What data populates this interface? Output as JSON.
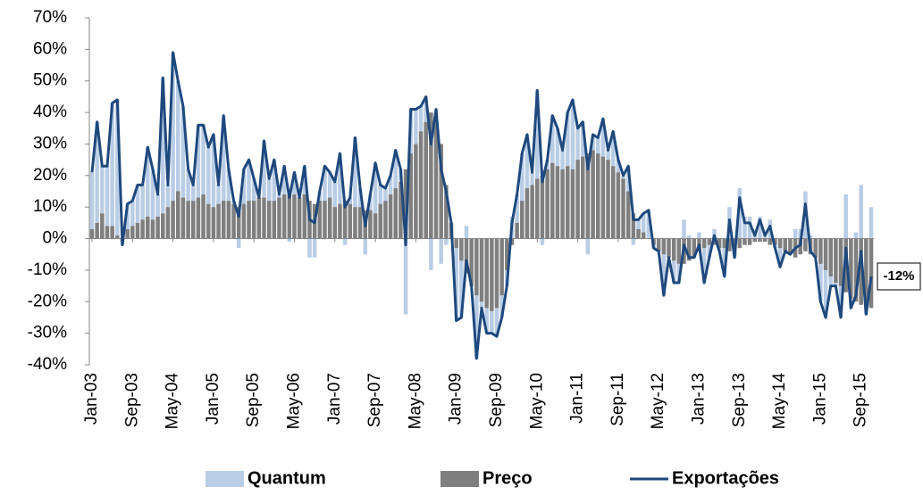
{
  "chart_data": {
    "type": "bar",
    "stacked": true,
    "categories": [
      "Jan-03",
      null,
      null,
      null,
      null,
      null,
      null,
      null,
      "Sep-03",
      null,
      null,
      null,
      null,
      null,
      null,
      null,
      "May-04",
      null,
      null,
      null,
      null,
      null,
      null,
      null,
      "Jan-05",
      null,
      null,
      null,
      null,
      null,
      null,
      null,
      "Sep-05",
      null,
      null,
      null,
      null,
      null,
      null,
      null,
      "May-06",
      null,
      null,
      null,
      null,
      null,
      null,
      null,
      "Jan-07",
      null,
      null,
      null,
      null,
      null,
      null,
      null,
      "Sep-07",
      null,
      null,
      null,
      null,
      null,
      null,
      null,
      "May-08",
      null,
      null,
      null,
      null,
      null,
      null,
      null,
      "Jan-09",
      null,
      null,
      null,
      null,
      null,
      null,
      null,
      "Sep-09",
      null,
      null,
      null,
      null,
      null,
      null,
      null,
      "May-10",
      null,
      null,
      null,
      null,
      null,
      null,
      null,
      "Jan-11",
      null,
      null,
      null,
      null,
      null,
      null,
      null,
      "Sep-11",
      null,
      null,
      null,
      null,
      null,
      null,
      null,
      "May-12",
      null,
      null,
      null,
      null,
      null,
      null,
      null,
      "Jan-13",
      null,
      null,
      null,
      null,
      null,
      null,
      null,
      "Sep-13",
      null,
      null,
      null,
      null,
      null,
      null,
      null,
      "May-14",
      null,
      null,
      null,
      null,
      null,
      null,
      null,
      "Jan-15",
      null,
      null,
      null,
      null,
      null,
      null,
      null,
      "Sep-15",
      null,
      null
    ],
    "series": [
      {
        "name": "Quantum",
        "color": "#b9cde5",
        "values": [
          18,
          32,
          15,
          19,
          39,
          43,
          -1,
          8,
          8,
          12,
          11,
          22,
          16,
          7,
          43,
          7,
          47,
          35,
          29,
          10,
          5,
          23,
          22,
          18,
          23,
          6,
          27,
          10,
          1,
          -3,
          11,
          13,
          7,
          0,
          18,
          7,
          13,
          1,
          9,
          -1,
          7,
          0,
          9,
          -6,
          -6,
          3,
          11,
          8,
          8,
          16,
          -2,
          2,
          22,
          6,
          -5,
          5,
          16,
          6,
          4,
          6,
          12,
          4,
          -24,
          14,
          11,
          8,
          8,
          -10,
          3,
          -8,
          -2,
          0,
          -23,
          -18,
          4,
          0,
          -20,
          -2,
          -8,
          -7,
          -9,
          -7,
          -5,
          7,
          9,
          15,
          17,
          4,
          28,
          -2,
          3,
          15,
          12,
          6,
          17,
          22,
          10,
          11,
          -5,
          5,
          5,
          12,
          3,
          11,
          4,
          1,
          8,
          -2,
          3,
          6,
          9,
          -1,
          0,
          -13,
          0,
          -7,
          -6,
          6,
          1,
          0,
          2,
          -11,
          -4,
          3,
          -1,
          -9,
          10,
          -1,
          16,
          7,
          7,
          2,
          7,
          2,
          6,
          -1,
          -6,
          0,
          0,
          3,
          3,
          15,
          1,
          0,
          -12,
          -15,
          -3,
          -1,
          -10,
          14,
          -3,
          2,
          17,
          -2,
          10
        ]
      },
      {
        "name": "Preço",
        "color": "#7f7f7f",
        "values": [
          3,
          5,
          8,
          4,
          4,
          1,
          -1,
          3,
          4,
          5,
          6,
          7,
          6,
          7,
          8,
          10,
          12,
          15,
          13,
          12,
          12,
          13,
          14,
          11,
          10,
          11,
          12,
          12,
          11,
          10,
          11,
          12,
          12,
          13,
          13,
          12,
          12,
          13,
          14,
          14,
          14,
          13,
          14,
          12,
          11,
          12,
          12,
          13,
          10,
          11,
          12,
          11,
          10,
          10,
          9,
          9,
          8,
          11,
          12,
          14,
          16,
          18,
          22,
          27,
          30,
          34,
          37,
          40,
          38,
          30,
          17,
          5,
          -3,
          -7,
          -11,
          -15,
          -18,
          -20,
          -22,
          -23,
          -22,
          -18,
          -10,
          -2,
          5,
          12,
          16,
          17,
          19,
          20,
          22,
          24,
          23,
          22,
          23,
          22,
          25,
          26,
          27,
          28,
          27,
          26,
          25,
          23,
          21,
          19,
          15,
          8,
          3,
          2,
          0,
          -2,
          -4,
          -5,
          -6,
          -7,
          -8,
          -8,
          -7,
          -6,
          -4,
          -3,
          -2,
          -2,
          -3,
          -3,
          -4,
          -5,
          -3,
          -2,
          -2,
          -1,
          -1,
          -1,
          -2,
          -2,
          -3,
          -4,
          -5,
          -6,
          -5,
          -4,
          -5,
          -6,
          -8,
          -10,
          -12,
          -14,
          -15,
          -17,
          -19,
          -20,
          -21,
          -22,
          -22
        ]
      },
      {
        "name": "Exportações",
        "color": "#1f497d",
        "type": "line",
        "values": [
          21,
          37,
          23,
          23,
          43,
          44,
          -2,
          11,
          12,
          17,
          17,
          29,
          22,
          14,
          51,
          17,
          59,
          50,
          42,
          22,
          17,
          36,
          36,
          29,
          33,
          17,
          39,
          22,
          12,
          7,
          22,
          25,
          19,
          13,
          31,
          19,
          25,
          14,
          23,
          13,
          21,
          13,
          23,
          6,
          5,
          15,
          23,
          21,
          18,
          27,
          10,
          13,
          32,
          16,
          4,
          14,
          24,
          17,
          16,
          20,
          28,
          22,
          -2,
          41,
          41,
          42,
          45,
          30,
          41,
          22,
          15,
          5,
          -26,
          -25,
          -7,
          -15,
          -38,
          -22,
          -30,
          -30,
          -31,
          -25,
          -15,
          5,
          14,
          27,
          33,
          21,
          47,
          18,
          25,
          39,
          35,
          28,
          40,
          44,
          35,
          37,
          22,
          33,
          32,
          38,
          28,
          34,
          25,
          20,
          23,
          6,
          6,
          8,
          9,
          -3,
          -4,
          -18,
          -6,
          -14,
          -14,
          -2,
          -6,
          -6,
          -2,
          -14,
          -6,
          1,
          -4,
          -12,
          6,
          -6,
          13,
          5,
          5,
          1,
          6,
          1,
          4,
          -3,
          -9,
          -4,
          -5,
          -3,
          -2,
          11,
          -4,
          -6,
          -20,
          -25,
          -15,
          -15,
          -25,
          -3,
          -22,
          -18,
          -4,
          -24,
          -12
        ],
        "value_labels": [
          null,
          null,
          null,
          null,
          null,
          null,
          null,
          null,
          null,
          null,
          null,
          null,
          null,
          null,
          null,
          null,
          null,
          null,
          null,
          null,
          null,
          null,
          null,
          null,
          null,
          null,
          null,
          null,
          null,
          null,
          null,
          null,
          null,
          null,
          null,
          null,
          null,
          null,
          null,
          null,
          null,
          null,
          null,
          null,
          null,
          null,
          null,
          null,
          null,
          null,
          null,
          null,
          null,
          null,
          null,
          null,
          null,
          null,
          null,
          null,
          null,
          null,
          null,
          null,
          null,
          null,
          null,
          null,
          null,
          null,
          null,
          null,
          null,
          null,
          null,
          null,
          null,
          null,
          null,
          null,
          null,
          null,
          null,
          null,
          null,
          null,
          null,
          null,
          null,
          null,
          null,
          null,
          null,
          null,
          null,
          null,
          null,
          null,
          null,
          null,
          null,
          null,
          null,
          null,
          null,
          null,
          null,
          null,
          null,
          null,
          null,
          null,
          null,
          null,
          null,
          null,
          null,
          null,
          null,
          null,
          null,
          null,
          null,
          null,
          null,
          null,
          null,
          null,
          null,
          null,
          null,
          null,
          null,
          null,
          null,
          null,
          null,
          null,
          null,
          null,
          null,
          null,
          null,
          null,
          null,
          null,
          null,
          null,
          null,
          null,
          null,
          null,
          null,
          null,
          "-12%"
        ]
      }
    ],
    "ylim": [
      -40,
      70
    ],
    "yticks": [
      {
        "value": -40,
        "label": "-40%"
      },
      {
        "value": -30,
        "label": "-30%"
      },
      {
        "value": -20,
        "label": "-20%"
      },
      {
        "value": -10,
        "label": "-10%"
      },
      {
        "value": 0,
        "label": "0%"
      },
      {
        "value": 10,
        "label": "10%"
      },
      {
        "value": 20,
        "label": "20%"
      },
      {
        "value": 30,
        "label": "30%"
      },
      {
        "value": 40,
        "label": "40%"
      },
      {
        "value": 50,
        "label": "50%"
      },
      {
        "value": 60,
        "label": "60%"
      },
      {
        "value": 70,
        "label": "70%"
      }
    ],
    "grid": false,
    "legend": "bottom"
  }
}
